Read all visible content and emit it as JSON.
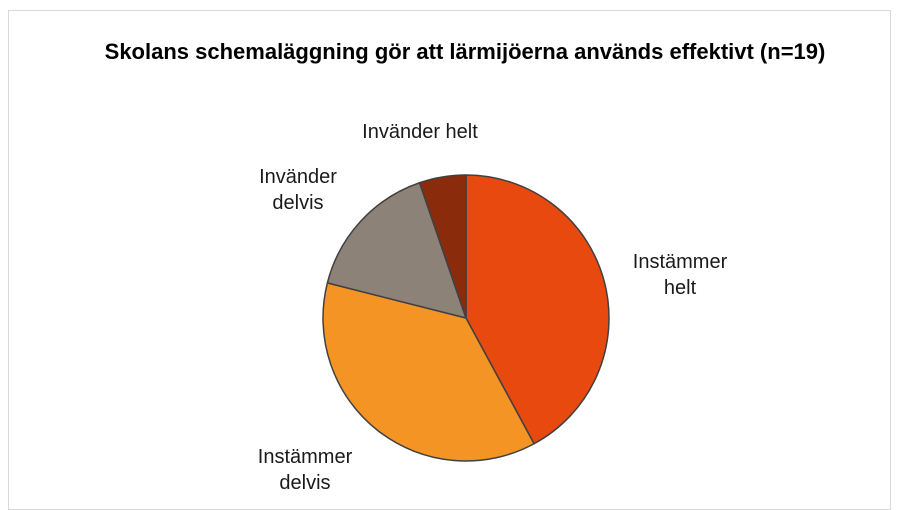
{
  "chart_data": {
    "type": "pie",
    "title": "Skolans schemaläggning gör att lärmijöerna används effektivt (n=19)",
    "categories": [
      "Instämmer helt",
      "Instämmer delvis",
      "Invänder delvis",
      "Invänder helt"
    ],
    "values": [
      8,
      7,
      3,
      1
    ],
    "colors": [
      "#e8490f",
      "#f39425",
      "#8c8278",
      "#8a2c0c"
    ]
  }
}
